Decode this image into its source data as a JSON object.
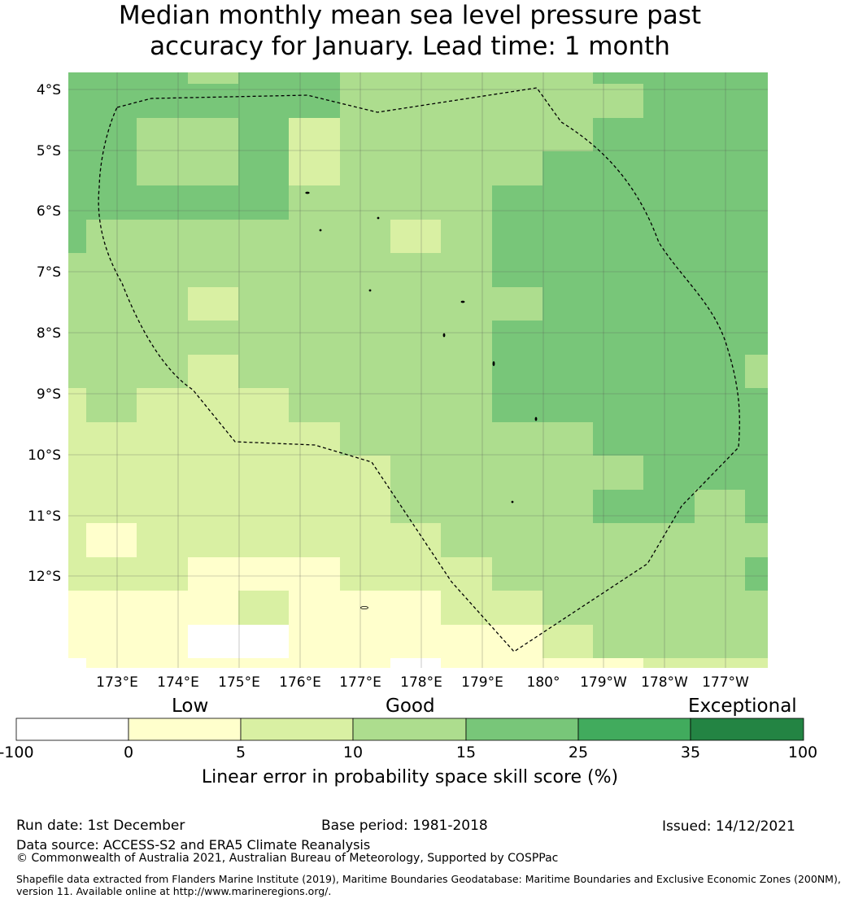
{
  "title_line1": "Median monthly mean sea level pressure past",
  "title_line2": "accuracy for January. Lead time: 1 month",
  "map": {
    "lon_labels": [
      "173°E",
      "174°E",
      "175°E",
      "176°E",
      "177°E",
      "178°E",
      "179°E",
      "180°",
      "179°W",
      "178°W",
      "177°W"
    ],
    "lat_labels": [
      "4°S",
      "5°S",
      "6°S",
      "7°S",
      "8°S",
      "9°S",
      "10°S",
      "11°S",
      "12°S"
    ],
    "colors": {
      "below0": "#ffffff",
      "c0_5": "#ffffcc",
      "c5_10": "#d9f0a3",
      "c10_15": "#addd8e",
      "c15_25": "#78c679",
      "c25_35": "#41ab5d",
      "c35_100": "#238443",
      "boundary": "#000000",
      "grid": "#555555"
    }
  },
  "colorbar": {
    "categories": [
      "Low",
      "Good",
      "Exceptional"
    ],
    "ticks": [
      "-100",
      "0",
      "5",
      "10",
      "15",
      "25",
      "35",
      "100"
    ],
    "label": "Linear error in probability space skill score (%)"
  },
  "footer": {
    "run_date": "Run date: 1st December",
    "base_period": "Base period: 1981-2018",
    "issued": "Issued: 14/12/2021",
    "data_source": "Data source: ACCESS-S2 and ERA5 Climate Reanalysis",
    "copyright": "© Commonwealth of Australia 2021, Australian Bureau of Meteorology, Supported by COSPPac",
    "shapefile_line1": "Shapefile data extracted from Flanders Marine Institute (2019), Maritime Boundaries Geodatabase: Maritime Boundaries and Exclusive Economic Zones (200NM),",
    "shapefile_line2": "version 11. Available online at http://www.marineregions.org/."
  }
}
